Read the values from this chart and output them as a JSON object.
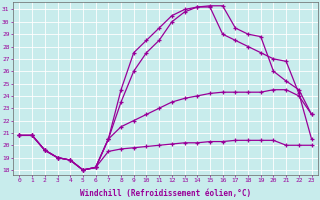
{
  "xlabel": "Windchill (Refroidissement éolien,°C)",
  "bg_color": "#c8ecec",
  "line_color": "#990099",
  "grid_color": "#b0d8d8",
  "xmin": -0.5,
  "xmax": 23.5,
  "ymin": 17.6,
  "ymax": 31.6,
  "line1": {
    "x": [
      0,
      1,
      2,
      3,
      4,
      5,
      6,
      7,
      8,
      9,
      10,
      11,
      12,
      13,
      14,
      15,
      16,
      17,
      18,
      19,
      20,
      21,
      22,
      23
    ],
    "y": [
      20.8,
      20.8,
      19.6,
      19.0,
      18.8,
      18.0,
      18.2,
      19.5,
      19.7,
      19.8,
      19.9,
      20.0,
      20.1,
      20.2,
      20.2,
      20.3,
      20.3,
      20.4,
      20.4,
      20.4,
      20.4,
      20.0,
      20.0,
      20.0
    ]
  },
  "line2": {
    "x": [
      0,
      1,
      2,
      3,
      4,
      5,
      6,
      7,
      8,
      9,
      10,
      11,
      12,
      13,
      14,
      15,
      16,
      17,
      18,
      19,
      20,
      21,
      22,
      23
    ],
    "y": [
      20.8,
      20.8,
      19.6,
      19.0,
      18.8,
      18.0,
      18.2,
      20.5,
      21.5,
      22.0,
      22.5,
      23.0,
      23.5,
      23.8,
      24.0,
      24.2,
      24.3,
      24.3,
      24.3,
      24.3,
      24.5,
      24.5,
      24.0,
      22.5
    ]
  },
  "line3": {
    "x": [
      0,
      1,
      2,
      3,
      4,
      5,
      6,
      7,
      8,
      9,
      10,
      11,
      12,
      13,
      14,
      15,
      16,
      17,
      18,
      19,
      20,
      21,
      22,
      23
    ],
    "y": [
      20.8,
      20.8,
      19.6,
      19.0,
      18.8,
      18.0,
      18.2,
      20.5,
      23.5,
      26.0,
      27.5,
      28.5,
      30.0,
      30.8,
      31.2,
      31.2,
      29.0,
      28.5,
      28.0,
      27.5,
      27.0,
      26.8,
      24.2,
      20.5
    ]
  },
  "line4": {
    "x": [
      0,
      1,
      2,
      3,
      4,
      5,
      6,
      7,
      8,
      9,
      10,
      11,
      12,
      13,
      14,
      15,
      16,
      17,
      18,
      19,
      20,
      21,
      22,
      23
    ],
    "y": [
      20.8,
      20.8,
      19.6,
      19.0,
      18.8,
      18.0,
      18.2,
      20.5,
      24.5,
      27.5,
      28.5,
      29.5,
      30.5,
      31.0,
      31.2,
      31.3,
      31.3,
      29.5,
      29.0,
      28.8,
      26.0,
      25.2,
      24.5,
      22.5
    ]
  },
  "yticks": [
    18,
    19,
    20,
    21,
    22,
    23,
    24,
    25,
    26,
    27,
    28,
    29,
    30,
    31
  ],
  "xticks": [
    0,
    1,
    2,
    3,
    4,
    5,
    6,
    7,
    8,
    9,
    10,
    11,
    12,
    13,
    14,
    15,
    16,
    17,
    18,
    19,
    20,
    21,
    22,
    23
  ]
}
